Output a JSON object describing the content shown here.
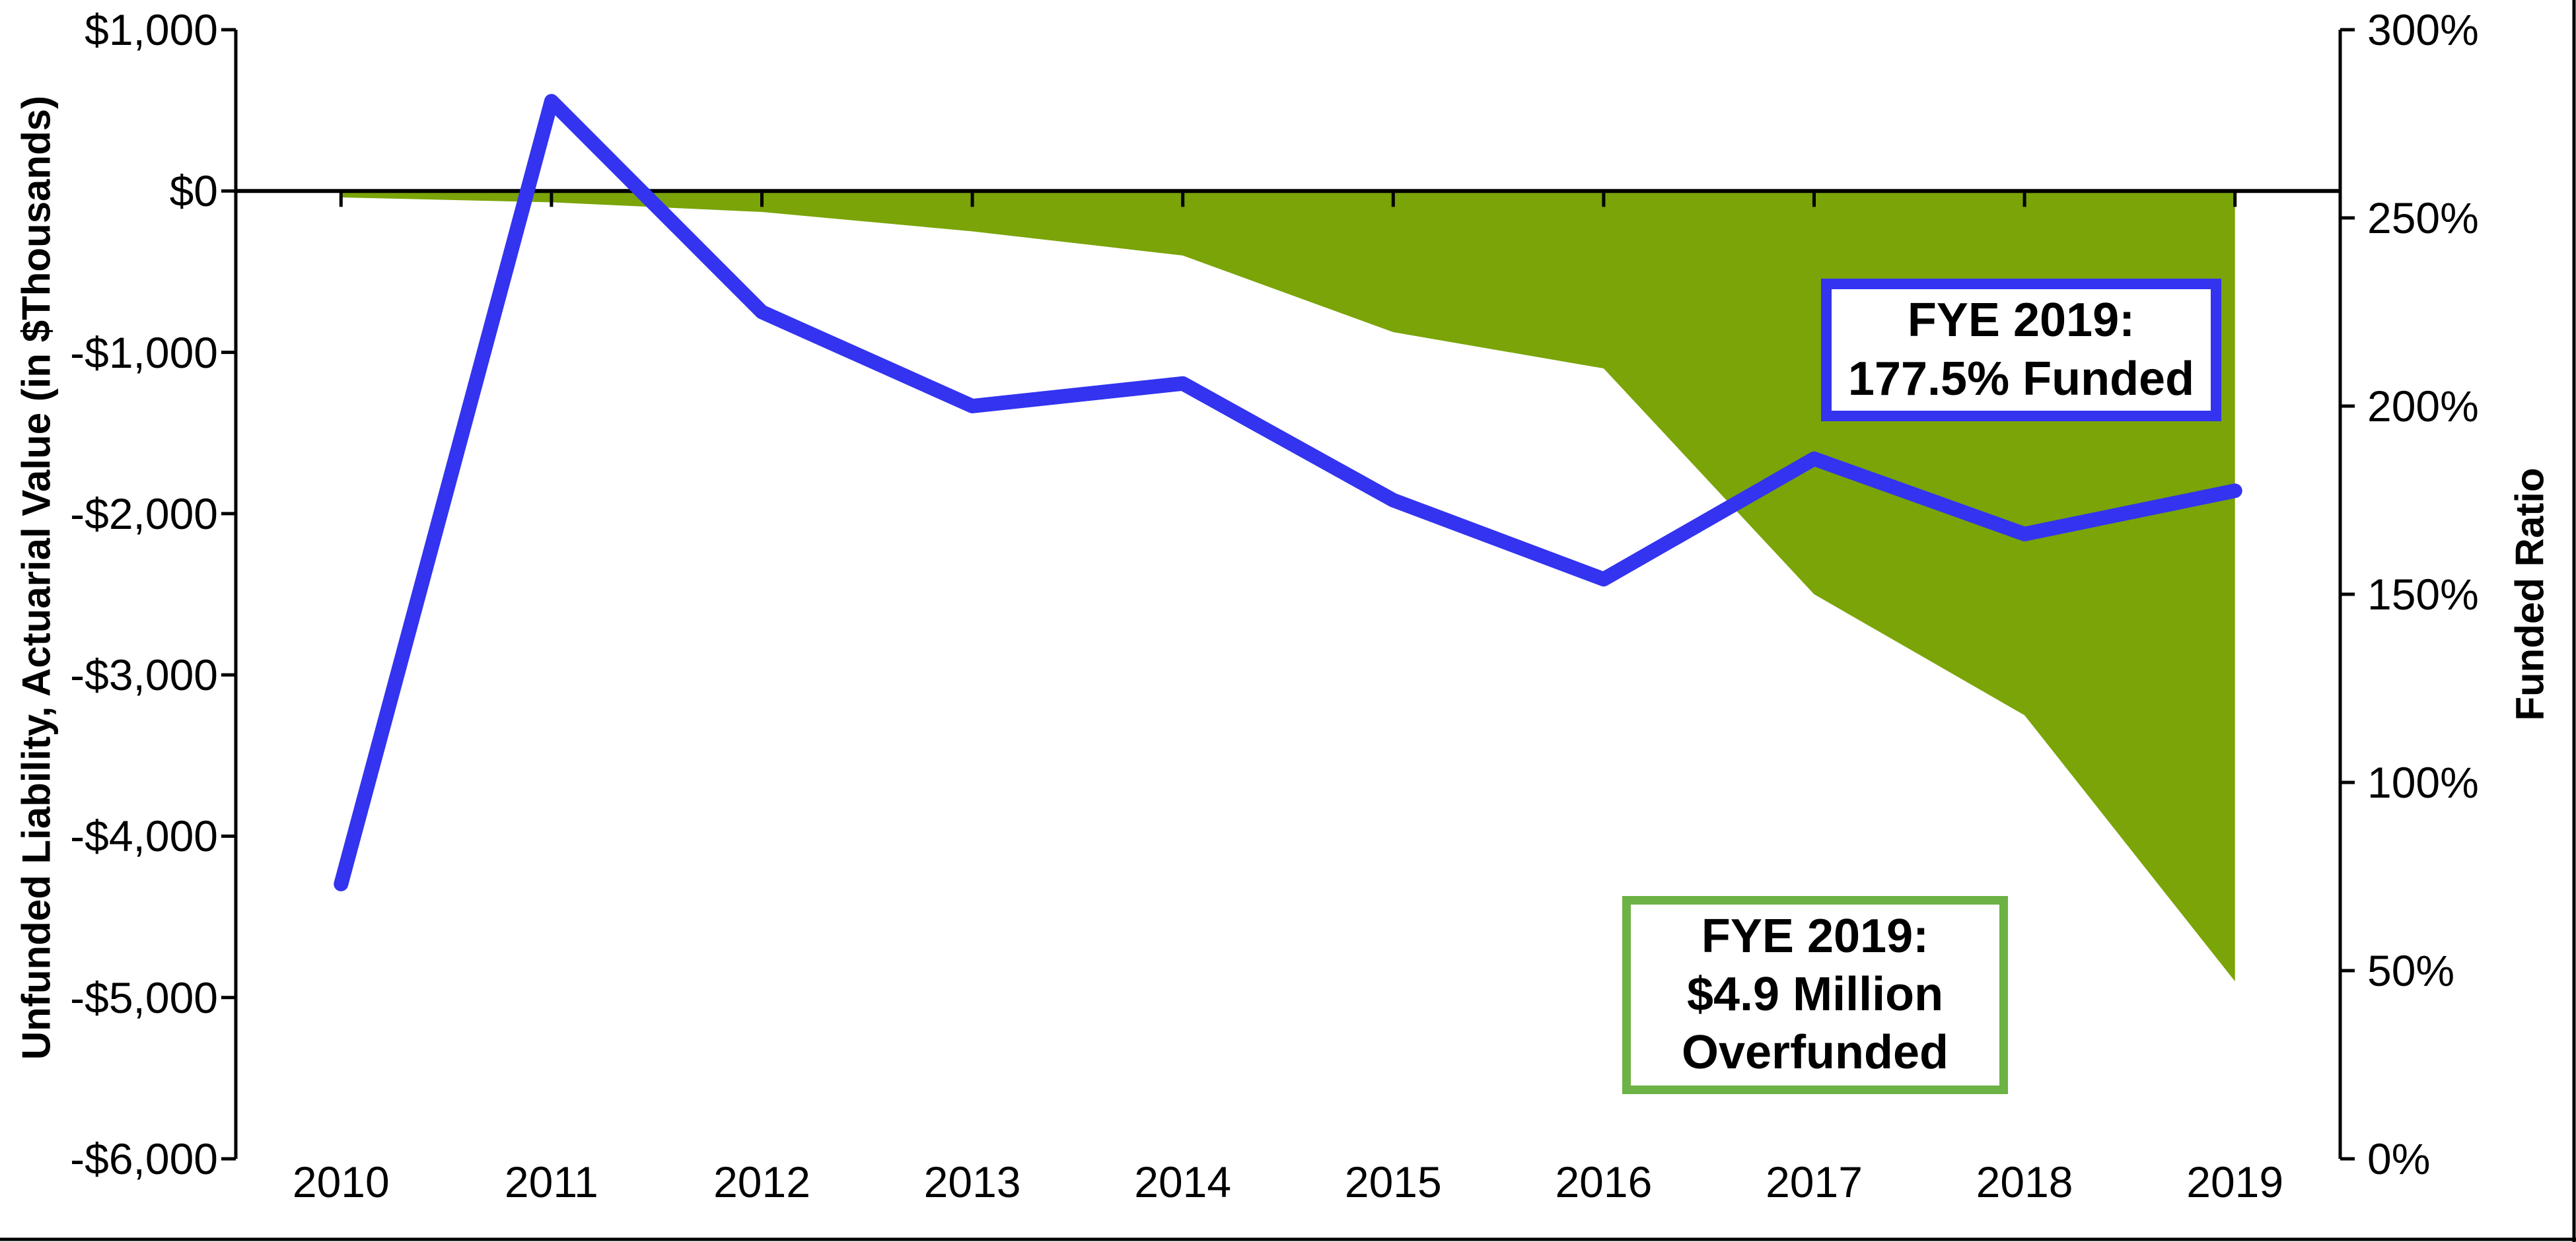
{
  "chart_data": {
    "type": "combo",
    "categories": [
      "2010",
      "2011",
      "2012",
      "2013",
      "2014",
      "2015",
      "2016",
      "2017",
      "2018",
      "2019"
    ],
    "series": [
      {
        "name": "Unfunded Liability, Actuarial Value",
        "type": "area",
        "axis": "left",
        "color": "#7aa408",
        "values": [
          -40,
          -70,
          -130,
          -250,
          -400,
          -875,
          -1100,
          -2500,
          -3250,
          -4900
        ]
      },
      {
        "name": "Funded Ratio",
        "type": "line",
        "axis": "right",
        "color": "#3333f0",
        "values": [
          73,
          281,
          225,
          200,
          206,
          175,
          154,
          186,
          166,
          177.5
        ]
      }
    ],
    "left_axis": {
      "title": "Unfunded Liability, Actuarial Value (in $Thousands)",
      "range": [
        -6000,
        1000
      ],
      "ticks": [
        {
          "label": "$1,000",
          "value": 1000
        },
        {
          "label": "$0",
          "value": 0
        },
        {
          "label": "-$1,000",
          "value": -1000
        },
        {
          "label": "-$2,000",
          "value": -2000
        },
        {
          "label": "-$3,000",
          "value": -3000
        },
        {
          "label": "-$4,000",
          "value": -4000
        },
        {
          "label": "-$5,000",
          "value": -5000
        },
        {
          "label": "-$6,000",
          "value": -6000
        }
      ]
    },
    "right_axis": {
      "title": "Funded Ratio",
      "range": [
        0,
        300
      ],
      "ticks": [
        {
          "label": "300%",
          "value": 300
        },
        {
          "label": "250%",
          "value": 250
        },
        {
          "label": "200%",
          "value": 200
        },
        {
          "label": "150%",
          "value": 150
        },
        {
          "label": "100%",
          "value": 100
        },
        {
          "label": "50%",
          "value": 50
        },
        {
          "label": "0%",
          "value": 0
        }
      ]
    },
    "x_axis": {
      "labels": [
        "2010",
        "2011",
        "2012",
        "2013",
        "2014",
        "2015",
        "2016",
        "2017",
        "2018",
        "2019"
      ]
    },
    "baseline_value": 0,
    "grid": "off",
    "legend": "none",
    "annotations": [
      {
        "name": "funded-ratio-callout",
        "lines": [
          "FYE 2019:",
          "177.5% Funded"
        ],
        "border_color": "#3333f0",
        "fill": "#ffffff"
      },
      {
        "name": "overfunded-callout",
        "lines": [
          "FYE 2019:",
          "$4.9 Million",
          "Overfunded"
        ],
        "border_color": "#6cb244",
        "fill": "#ffffff"
      }
    ],
    "frame": {
      "bottom_border_color": "#000000",
      "right_border_color": "#000000"
    }
  }
}
